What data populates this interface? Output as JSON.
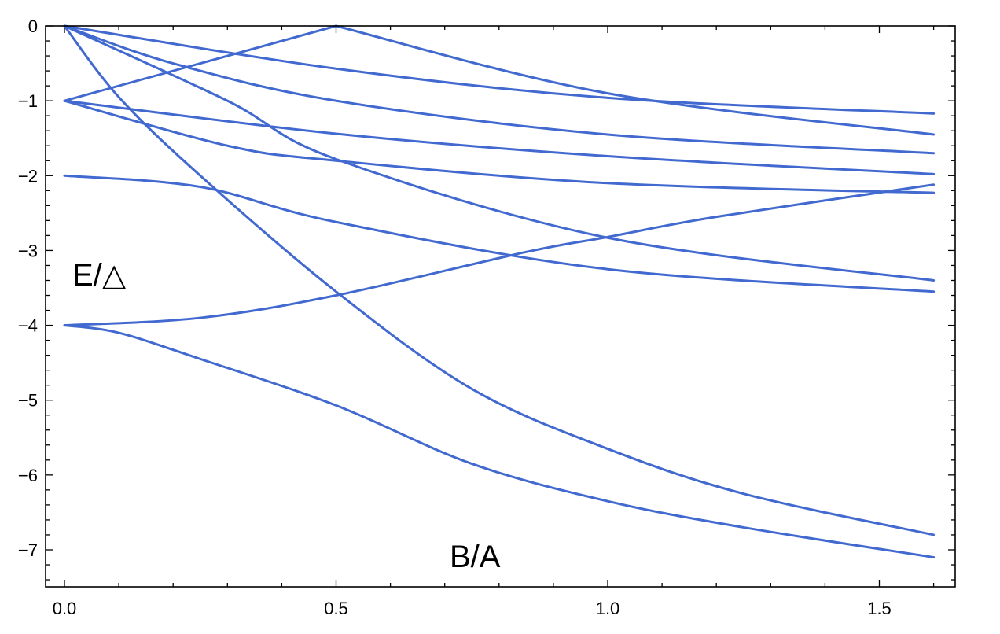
{
  "chart_data": {
    "type": "line",
    "title": "",
    "xlabel": "B/A",
    "ylabel": "E/△",
    "xlim": [
      -0.04,
      1.65
    ],
    "ylim": [
      -7.5,
      0
    ],
    "x_ticks": [
      "0.0",
      "0.5",
      "1.0",
      "1.5"
    ],
    "y_ticks": [
      "0",
      "−1",
      "−2",
      "−3",
      "−4",
      "−5",
      "−6",
      "−7"
    ],
    "grid": false,
    "legend": "none",
    "line_color": "#4169cf",
    "series": [
      {
        "x": [
          0,
          0.5,
          1.0,
          1.6
        ],
        "y": [
          0,
          -0.57,
          -0.96,
          -1.17
        ]
      },
      {
        "x": [
          0,
          0.5,
          1.0,
          1.6
        ],
        "y": [
          -1,
          0,
          -0.9,
          -1.45
        ]
      },
      {
        "x": [
          0,
          0.2,
          0.5,
          1.0,
          1.6
        ],
        "y": [
          0,
          -0.5,
          -1.0,
          -1.45,
          -1.7
        ]
      },
      {
        "x": [
          0,
          0.5,
          1.0,
          1.6
        ],
        "y": [
          -1,
          -1.44,
          -1.74,
          -1.98
        ]
      },
      {
        "x": [
          0,
          0.3,
          0.5,
          1.0,
          1.6
        ],
        "y": [
          0,
          -1.0,
          -1.78,
          -2.83,
          -3.4
        ]
      },
      {
        "x": [
          0,
          0.3,
          0.5,
          1.0,
          1.6
        ],
        "y": [
          -1,
          -1.6,
          -1.8,
          -2.1,
          -2.23
        ]
      },
      {
        "x": [
          0,
          0.1,
          0.25,
          0.5,
          0.75,
          1.0,
          1.25,
          1.6
        ],
        "y": [
          0,
          -0.95,
          -2.0,
          -3.55,
          -4.85,
          -5.65,
          -6.25,
          -6.8
        ]
      },
      {
        "x": [
          0,
          0.25,
          0.5,
          1.0,
          1.6
        ],
        "y": [
          -2,
          -2.15,
          -2.62,
          -3.25,
          -3.55
        ]
      },
      {
        "x": [
          0,
          0.25,
          0.5,
          0.85,
          1.0,
          1.2,
          1.6
        ],
        "y": [
          -4,
          -3.9,
          -3.6,
          -3.02,
          -2.82,
          -2.55,
          -2.12
        ]
      },
      {
        "x": [
          0,
          0.1,
          0.25,
          0.5,
          0.75,
          1.0,
          1.25,
          1.6
        ],
        "y": [
          -4,
          -4.1,
          -4.45,
          -5.07,
          -5.85,
          -6.35,
          -6.7,
          -7.1
        ]
      }
    ]
  }
}
